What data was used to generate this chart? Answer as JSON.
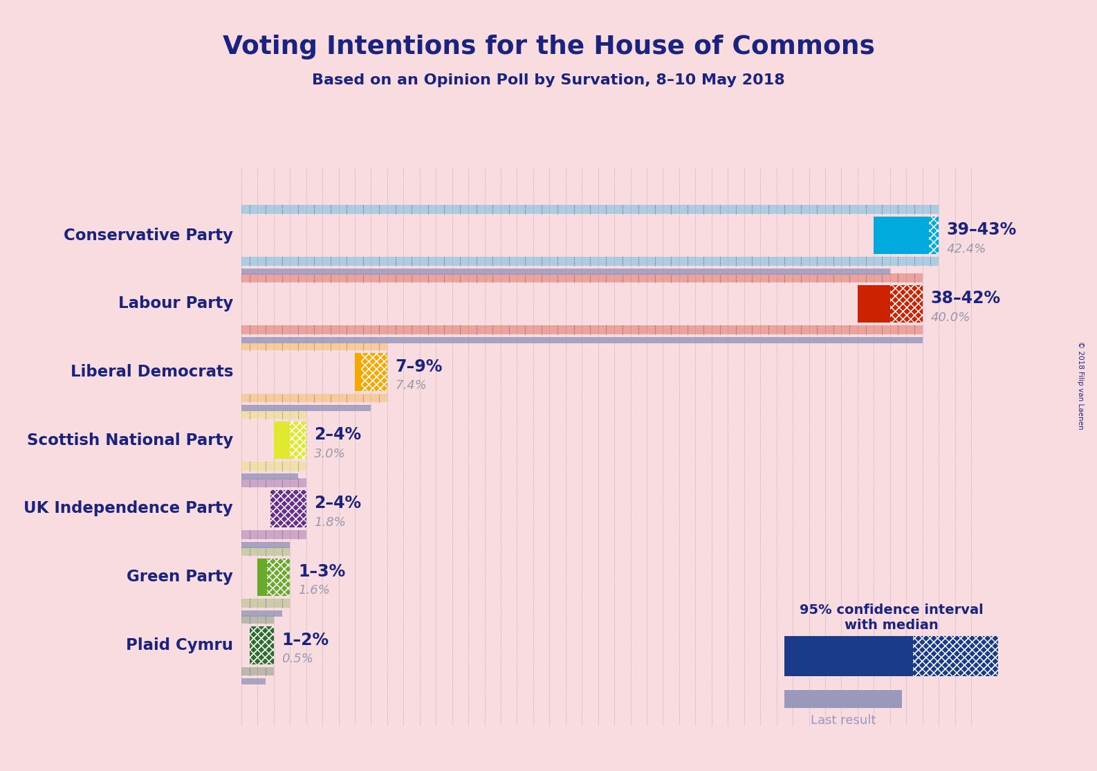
{
  "title": "Voting Intentions for the House of Commons",
  "subtitle": "Based on an Opinion Poll by Survation, 8–10 May 2018",
  "background_color": "#f9dce0",
  "title_color": "#1a237e",
  "parties": [
    {
      "name": "Conservative Party",
      "ci_low": 39,
      "ci_high": 43,
      "median": 42.4,
      "last": 40.0,
      "color": "#00aadd",
      "ci_label": "39–43%",
      "median_label": "42.4%"
    },
    {
      "name": "Labour Party",
      "ci_low": 38,
      "ci_high": 42,
      "median": 40.0,
      "last": 42.0,
      "color": "#cc2200",
      "ci_label": "38–42%",
      "median_label": "40.0%"
    },
    {
      "name": "Liberal Democrats",
      "ci_low": 7,
      "ci_high": 9,
      "median": 7.4,
      "last": 8.0,
      "color": "#f5a800",
      "ci_label": "7–9%",
      "median_label": "7.4%"
    },
    {
      "name": "Scottish National Party",
      "ci_low": 2,
      "ci_high": 4,
      "median": 3.0,
      "last": 3.5,
      "color": "#e0e830",
      "ci_label": "2–4%",
      "median_label": "3.0%"
    },
    {
      "name": "UK Independence Party",
      "ci_low": 2,
      "ci_high": 4,
      "median": 1.8,
      "last": 3.0,
      "color": "#6b2d8b",
      "ci_label": "2–4%",
      "median_label": "1.8%"
    },
    {
      "name": "Green Party",
      "ci_low": 1,
      "ci_high": 3,
      "median": 1.6,
      "last": 2.5,
      "color": "#6aaa2a",
      "ci_label": "1–3%",
      "median_label": "1.6%"
    },
    {
      "name": "Plaid Cymru",
      "ci_low": 1,
      "ci_high": 2,
      "median": 0.5,
      "last": 1.5,
      "color": "#2d6e2d",
      "ci_label": "1–2%",
      "median_label": "0.5%"
    }
  ],
  "xlim": [
    0,
    46
  ],
  "legend_text_ci": "95% confidence interval\nwith median",
  "legend_text_last": "Last result",
  "legend_color_ci": "#1a3a8a",
  "legend_color_last": "#9999bb",
  "copyright": "© 2018 Filip van Laenen",
  "dot_color": "#1a237e"
}
